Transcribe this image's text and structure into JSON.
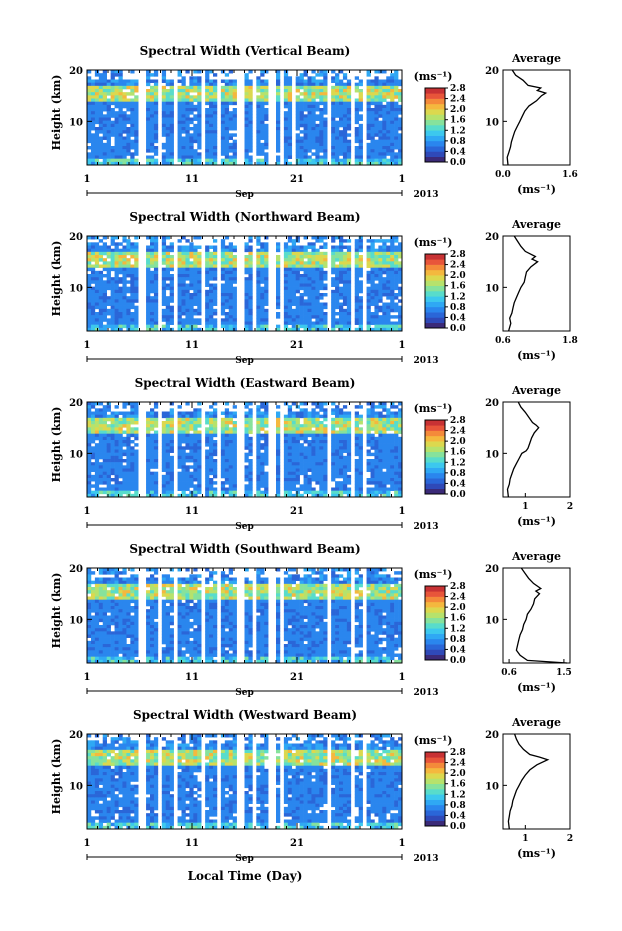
{
  "figure": {
    "xlabel": "Local Time (Day)",
    "colorbar_unit": "(ms⁻¹)",
    "month_label": "Sep",
    "year_label": "2013",
    "profile_title": "Average",
    "profile_unit": "(ms⁻¹)",
    "ylabel": "Height (km)"
  },
  "colormap": [
    "#3b2a78",
    "#2f49b8",
    "#2a66d8",
    "#2a86ee",
    "#2fa8f4",
    "#3cc8ee",
    "#58dccb",
    "#86e29c",
    "#b6e26c",
    "#dcd84e",
    "#f4b83e",
    "#f48a3a",
    "#e8553a",
    "#c83234"
  ],
  "chart_data": [
    {
      "type": "heatmap",
      "title": "Spectral Width (Vertical Beam)",
      "x_ticks": [
        "1",
        "11",
        "21",
        "1"
      ],
      "x_range_days": [
        1,
        31
      ],
      "y_ticks": [
        "10",
        "20"
      ],
      "y_range_km": [
        1.5,
        20
      ],
      "colorbar_ticks": [
        "0.0",
        "0.4",
        "0.8",
        "1.2",
        "1.6",
        "2.0",
        "2.4",
        "2.8"
      ],
      "colorbar_range": [
        0,
        2.8
      ],
      "gaps_days": [
        [
          6.0,
          6.5
        ],
        [
          7.6,
          8.3
        ],
        [
          9.3,
          9.6
        ],
        [
          11.7,
          12.4
        ],
        [
          13.3,
          13.8
        ],
        [
          15.4,
          15.9
        ],
        [
          16.7,
          17.1
        ],
        [
          18.4,
          18.9
        ],
        [
          19.3,
          19.6
        ],
        [
          20.5,
          20.7
        ],
        [
          23.8,
          24.3
        ],
        [
          26.0,
          26.4
        ],
        [
          27.4,
          27.8
        ]
      ],
      "profile": {
        "title": "Average",
        "x_ticks": [
          "0.0",
          "1.6"
        ],
        "x_range": [
          0,
          1.6
        ],
        "y_ticks": [
          "10",
          "20"
        ],
        "points": [
          [
            0.12,
            1.5
          ],
          [
            0.1,
            3
          ],
          [
            0.14,
            4
          ],
          [
            0.18,
            5
          ],
          [
            0.2,
            6
          ],
          [
            0.24,
            7
          ],
          [
            0.28,
            8
          ],
          [
            0.34,
            9
          ],
          [
            0.4,
            10
          ],
          [
            0.46,
            11
          ],
          [
            0.52,
            12
          ],
          [
            0.62,
            13
          ],
          [
            0.8,
            14
          ],
          [
            0.92,
            15
          ],
          [
            1.02,
            15.5
          ],
          [
            0.82,
            16
          ],
          [
            0.9,
            16.5
          ],
          [
            0.6,
            17
          ],
          [
            0.48,
            18
          ],
          [
            0.3,
            19
          ],
          [
            0.22,
            20
          ]
        ]
      }
    },
    {
      "type": "heatmap",
      "title": "Spectral Width (Northward Beam)",
      "x_ticks": [
        "1",
        "11",
        "21",
        "1"
      ],
      "x_range_days": [
        1,
        31
      ],
      "y_ticks": [
        "10",
        "20"
      ],
      "y_range_km": [
        1.5,
        20
      ],
      "colorbar_ticks": [
        "0.0",
        "0.4",
        "0.8",
        "1.2",
        "1.6",
        "2.0",
        "2.4",
        "2.8"
      ],
      "colorbar_range": [
        0,
        2.8
      ],
      "gaps_days": [
        [
          6.0,
          6.5
        ],
        [
          7.6,
          8.3
        ],
        [
          9.3,
          9.6
        ],
        [
          11.7,
          12.4
        ],
        [
          13.3,
          13.8
        ],
        [
          15.4,
          15.9
        ],
        [
          16.7,
          17.1
        ],
        [
          18.4,
          18.9
        ],
        [
          19.3,
          19.6
        ],
        [
          23.8,
          24.3
        ],
        [
          26.0,
          26.4
        ],
        [
          27.4,
          27.8
        ]
      ],
      "profile": {
        "title": "Average",
        "x_ticks": [
          "0.6",
          "1.8"
        ],
        "x_range": [
          0.6,
          1.8
        ],
        "y_ticks": [
          "10",
          "20"
        ],
        "points": [
          [
            0.7,
            1.5
          ],
          [
            0.74,
            3
          ],
          [
            0.72,
            4
          ],
          [
            0.76,
            5
          ],
          [
            0.78,
            6
          ],
          [
            0.8,
            7
          ],
          [
            0.84,
            8
          ],
          [
            0.88,
            9
          ],
          [
            0.92,
            10
          ],
          [
            0.98,
            11
          ],
          [
            1.0,
            12
          ],
          [
            1.02,
            13
          ],
          [
            1.1,
            14
          ],
          [
            1.22,
            15
          ],
          [
            1.12,
            15.5
          ],
          [
            1.18,
            16
          ],
          [
            1.0,
            17
          ],
          [
            0.92,
            18
          ],
          [
            0.86,
            19
          ],
          [
            0.8,
            20
          ]
        ]
      }
    },
    {
      "type": "heatmap",
      "title": "Spectral Width (Eastward Beam)",
      "x_ticks": [
        "1",
        "11",
        "21",
        "1"
      ],
      "x_range_days": [
        1,
        31
      ],
      "y_ticks": [
        "10",
        "20"
      ],
      "y_range_km": [
        1.5,
        20
      ],
      "colorbar_ticks": [
        "0.0",
        "0.4",
        "0.8",
        "1.2",
        "1.6",
        "2.0",
        "2.4",
        "2.8"
      ],
      "colorbar_range": [
        0,
        2.8
      ],
      "gaps_days": [
        [
          6.0,
          6.5
        ],
        [
          7.6,
          8.3
        ],
        [
          9.3,
          9.6
        ],
        [
          11.7,
          12.4
        ],
        [
          13.3,
          13.8
        ],
        [
          15.4,
          15.9
        ],
        [
          16.7,
          17.1
        ],
        [
          18.4,
          18.9
        ],
        [
          19.3,
          19.6
        ],
        [
          23.8,
          24.3
        ],
        [
          26.0,
          26.4
        ],
        [
          27.4,
          27.8
        ]
      ],
      "profile": {
        "title": "Average",
        "x_ticks": [
          "1",
          "2"
        ],
        "x_range": [
          0.5,
          2
        ],
        "y_ticks": [
          "10",
          "20"
        ],
        "points": [
          [
            0.62,
            1.5
          ],
          [
            0.6,
            3
          ],
          [
            0.64,
            4
          ],
          [
            0.66,
            5
          ],
          [
            0.7,
            6
          ],
          [
            0.74,
            7
          ],
          [
            0.8,
            8
          ],
          [
            0.86,
            9
          ],
          [
            0.92,
            10
          ],
          [
            1.02,
            10.5
          ],
          [
            1.06,
            11
          ],
          [
            1.1,
            12
          ],
          [
            1.14,
            13
          ],
          [
            1.2,
            14
          ],
          [
            1.3,
            15
          ],
          [
            1.24,
            15.5
          ],
          [
            1.16,
            16
          ],
          [
            1.08,
            17
          ],
          [
            1.0,
            18
          ],
          [
            0.9,
            19
          ],
          [
            0.84,
            20
          ]
        ]
      }
    },
    {
      "type": "heatmap",
      "title": "Spectral Width (Southward Beam)",
      "x_ticks": [
        "1",
        "11",
        "21",
        "1"
      ],
      "x_range_days": [
        1,
        31
      ],
      "y_ticks": [
        "10",
        "20"
      ],
      "y_range_km": [
        1.5,
        20
      ],
      "colorbar_ticks": [
        "0.0",
        "0.4",
        "0.8",
        "1.2",
        "1.6",
        "2.0",
        "2.4",
        "2.8"
      ],
      "colorbar_range": [
        0,
        2.8
      ],
      "gaps_days": [
        [
          6.0,
          6.5
        ],
        [
          7.6,
          8.3
        ],
        [
          9.3,
          9.6
        ],
        [
          11.7,
          12.4
        ],
        [
          13.3,
          13.8
        ],
        [
          15.4,
          15.9
        ],
        [
          16.7,
          17.1
        ],
        [
          18.4,
          18.9
        ],
        [
          19.3,
          19.6
        ],
        [
          23.8,
          24.3
        ],
        [
          26.0,
          26.4
        ],
        [
          27.4,
          27.8
        ]
      ],
      "profile": {
        "title": "Average",
        "x_ticks": [
          "0.6",
          "1.5"
        ],
        "x_range": [
          0.5,
          1.6
        ],
        "y_ticks": [
          "10",
          "20"
        ],
        "points": [
          [
            1.55,
            1.5
          ],
          [
            0.9,
            2
          ],
          [
            0.78,
            3
          ],
          [
            0.72,
            4
          ],
          [
            0.74,
            5
          ],
          [
            0.76,
            6
          ],
          [
            0.78,
            7
          ],
          [
            0.82,
            8
          ],
          [
            0.84,
            9
          ],
          [
            0.88,
            10
          ],
          [
            0.9,
            11
          ],
          [
            0.96,
            12
          ],
          [
            1.0,
            13
          ],
          [
            1.02,
            14
          ],
          [
            1.1,
            15
          ],
          [
            1.04,
            15.5
          ],
          [
            1.12,
            16
          ],
          [
            1.0,
            17
          ],
          [
            0.92,
            18
          ],
          [
            0.86,
            19
          ],
          [
            0.8,
            20
          ]
        ]
      }
    },
    {
      "type": "heatmap",
      "title": "Spectral Width (Westward Beam)",
      "x_ticks": [
        "1",
        "11",
        "21",
        "1"
      ],
      "x_range_days": [
        1,
        31
      ],
      "y_ticks": [
        "10",
        "20"
      ],
      "y_range_km": [
        1.5,
        20
      ],
      "colorbar_ticks": [
        "0.0",
        "0.4",
        "0.8",
        "1.2",
        "1.6",
        "2.0",
        "2.4",
        "2.8"
      ],
      "colorbar_range": [
        0,
        2.8
      ],
      "gaps_days": [
        [
          6.0,
          6.5
        ],
        [
          7.6,
          8.3
        ],
        [
          9.3,
          9.6
        ],
        [
          11.7,
          12.4
        ],
        [
          13.3,
          13.8
        ],
        [
          15.4,
          15.9
        ],
        [
          16.7,
          17.1
        ],
        [
          18.4,
          18.9
        ],
        [
          19.3,
          19.6
        ],
        [
          23.8,
          24.3
        ],
        [
          26.0,
          26.4
        ],
        [
          27.4,
          27.8
        ]
      ],
      "profile": {
        "title": "Average",
        "x_ticks": [
          "1",
          "2"
        ],
        "x_range": [
          0.5,
          2
        ],
        "y_ticks": [
          "10",
          "20"
        ],
        "points": [
          [
            0.64,
            1.5
          ],
          [
            0.62,
            3
          ],
          [
            0.64,
            4
          ],
          [
            0.66,
            5
          ],
          [
            0.7,
            6
          ],
          [
            0.72,
            7
          ],
          [
            0.76,
            8
          ],
          [
            0.8,
            9
          ],
          [
            0.86,
            10
          ],
          [
            0.92,
            11
          ],
          [
            1.0,
            12
          ],
          [
            1.1,
            13
          ],
          [
            1.26,
            14
          ],
          [
            1.5,
            15
          ],
          [
            1.32,
            15.5
          ],
          [
            1.1,
            16
          ],
          [
            0.96,
            17
          ],
          [
            0.86,
            18
          ],
          [
            0.8,
            19
          ],
          [
            0.76,
            20
          ]
        ]
      }
    }
  ]
}
